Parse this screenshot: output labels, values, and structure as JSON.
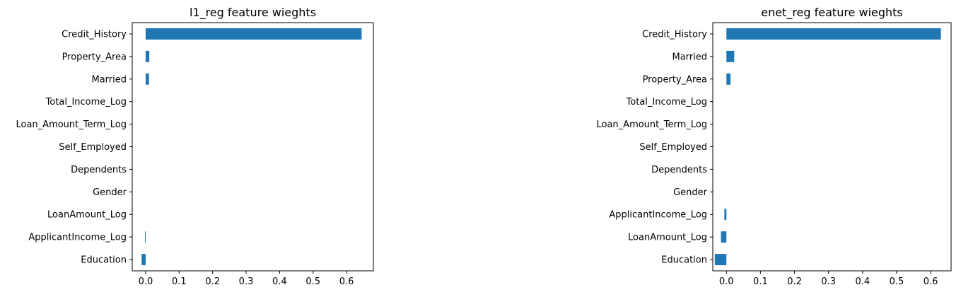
{
  "colors": {
    "bar": "#1f77b4",
    "axis": "#000000",
    "background": "#ffffff"
  },
  "chart_data": [
    {
      "type": "bar",
      "orientation": "horizontal",
      "title": "l1_reg feature wieghts",
      "xlabel": "",
      "ylabel": "",
      "grid": false,
      "xlim": [
        -0.04,
        0.68
      ],
      "xticks": [
        0.0,
        0.1,
        0.2,
        0.3,
        0.4,
        0.5,
        0.6
      ],
      "xtick_labels": [
        "0.0",
        "0.1",
        "0.2",
        "0.3",
        "0.4",
        "0.5",
        "0.6"
      ],
      "categories": [
        "Credit_History",
        "Property_Area",
        "Married",
        "Total_Income_Log",
        "Loan_Amount_Term_Log",
        "Self_Employed",
        "Dependents",
        "Gender",
        "LoanAmount_Log",
        "ApplicantIncome_Log",
        "Education"
      ],
      "values": [
        0.645,
        0.011,
        0.01,
        0.0,
        0.0,
        0.0,
        0.0,
        0.0,
        0.0,
        -0.002,
        -0.012
      ]
    },
    {
      "type": "bar",
      "orientation": "horizontal",
      "title": "enet_reg feature wieghts",
      "xlabel": "",
      "ylabel": "",
      "grid": false,
      "xlim": [
        -0.04,
        0.66
      ],
      "xticks": [
        0.0,
        0.1,
        0.2,
        0.3,
        0.4,
        0.5,
        0.6
      ],
      "xtick_labels": [
        "0.0",
        "0.1",
        "0.2",
        "0.3",
        "0.4",
        "0.5",
        "0.6"
      ],
      "categories": [
        "Credit_History",
        "Married",
        "Property_Area",
        "Total_Income_Log",
        "Loan_Amount_Term_Log",
        "Self_Employed",
        "Dependents",
        "Gender",
        "ApplicantIncome_Log",
        "LoanAmount_Log",
        "Education"
      ],
      "values": [
        0.63,
        0.023,
        0.012,
        0.0,
        0.0,
        0.0,
        0.0,
        0.0,
        -0.006,
        -0.016,
        -0.034
      ]
    }
  ]
}
